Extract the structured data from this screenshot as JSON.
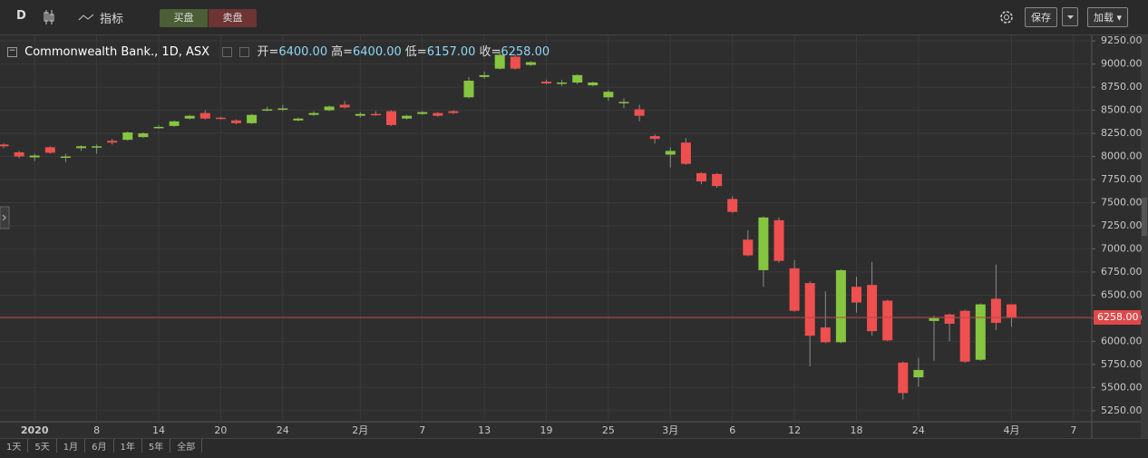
{
  "toolbar": {
    "interval": "D",
    "indicators": "指标",
    "buy": "买盘",
    "sell": "卖盘",
    "save": "保存",
    "load": "加载"
  },
  "legend": {
    "title": "Commonwealth Bank., 1D, ASX",
    "fields": [
      {
        "label": "开=",
        "value": "6400.00"
      },
      {
        "label": "高=",
        "value": "6400.00"
      },
      {
        "label": "低=",
        "value": "6157.00"
      },
      {
        "label": "收=",
        "value": "6258.00"
      }
    ]
  },
  "range_buttons": [
    "1天",
    "5天",
    "1月",
    "6月",
    "1年",
    "5年",
    "全部"
  ],
  "chart_data": {
    "type": "candlestick",
    "categories": [
      null,
      null,
      "2020",
      null,
      null,
      null,
      "8",
      null,
      null,
      null,
      "14",
      null,
      null,
      null,
      "20",
      null,
      null,
      null,
      "24",
      null,
      null,
      null,
      null,
      "2月",
      null,
      null,
      null,
      "7",
      null,
      null,
      null,
      "13",
      null,
      null,
      null,
      "19",
      null,
      null,
      null,
      "25",
      null,
      null,
      null,
      "3月",
      null,
      null,
      null,
      "6",
      null,
      null,
      null,
      "12",
      null,
      null,
      null,
      "18",
      null,
      null,
      null,
      "24",
      null,
      null,
      null,
      null,
      null,
      "4月",
      null,
      null,
      null,
      "7"
    ],
    "open": [
      8130,
      8045,
      7990,
      8100,
      7990,
      8090,
      8100,
      8170,
      8180,
      8210,
      8310,
      8330,
      8410,
      8470,
      8420,
      8390,
      8360,
      8500,
      8510,
      8390,
      8450,
      8500,
      8560,
      8440,
      8460,
      8490,
      8410,
      8460,
      8470,
      8490,
      8640,
      8860,
      8950,
      9080,
      8990,
      8810,
      8790,
      8800,
      8770,
      8640,
      8580,
      8510,
      8220,
      8020,
      8150,
      7820,
      7810,
      7540,
      7100,
      6770,
      7310,
      6790,
      6630,
      6150,
      5990,
      6590,
      6610,
      6440,
      5770,
      5610,
      6220,
      6290,
      6330,
      5800,
      6460,
      6400,
      null,
      null,
      null,
      null
    ],
    "high": [
      8140,
      8060,
      8030,
      8110,
      8030,
      8120,
      8130,
      8190,
      8270,
      8260,
      8340,
      8390,
      8450,
      8500,
      8430,
      8400,
      8460,
      8540,
      8560,
      8420,
      8490,
      8550,
      8600,
      8480,
      8490,
      8500,
      8450,
      8490,
      8480,
      8500,
      8860,
      8920,
      9150,
      9100,
      9030,
      8830,
      8830,
      8890,
      8810,
      8720,
      8630,
      8560,
      8240,
      8100,
      8200,
      7830,
      7820,
      7570,
      7200,
      7350,
      7340,
      6880,
      6650,
      6540,
      6780,
      6700,
      6860,
      6450,
      5780,
      5820,
      6280,
      6300,
      6340,
      6410,
      6830,
      6400,
      null,
      null,
      null,
      null
    ],
    "low": [
      8090,
      7980,
      7950,
      8030,
      7940,
      8060,
      8030,
      8130,
      8170,
      8200,
      8300,
      8320,
      8400,
      8400,
      8400,
      8350,
      8350,
      8490,
      8490,
      8380,
      8440,
      8490,
      8520,
      8420,
      8440,
      8330,
      8400,
      8450,
      8430,
      8460,
      8630,
      8840,
      8940,
      8940,
      8980,
      8780,
      8760,
      8780,
      8760,
      8600,
      8520,
      8380,
      8140,
      7880,
      7910,
      7700,
      7660,
      7390,
      6920,
      6590,
      6850,
      6320,
      5730,
      5980,
      5980,
      6310,
      6060,
      6000,
      5370,
      5510,
      5790,
      6000,
      5770,
      5790,
      6120,
      6157,
      null,
      null,
      null,
      null
    ],
    "close": [
      8110,
      8000,
      8010,
      8040,
      8000,
      8110,
      8110,
      8150,
      8260,
      8250,
      8320,
      8380,
      8440,
      8410,
      8410,
      8360,
      8450,
      8510,
      8520,
      8410,
      8470,
      8540,
      8530,
      8460,
      8450,
      8340,
      8440,
      8480,
      8440,
      8470,
      8820,
      8880,
      9100,
      8950,
      9020,
      8790,
      8800,
      8880,
      8800,
      8700,
      8590,
      8440,
      8190,
      8060,
      7920,
      7730,
      7680,
      7400,
      6930,
      7340,
      6870,
      6330,
      6060,
      5990,
      6770,
      6420,
      6110,
      6010,
      5440,
      5690,
      6250,
      6190,
      5780,
      6400,
      6200,
      6258,
      null,
      null,
      null,
      null
    ],
    "up_color": "#86c53f",
    "down_color": "#ef4f4f",
    "ylim": [
      5130,
      9320
    ],
    "yticks": [
      {
        "value": 5250,
        "label": "5250.00"
      },
      {
        "value": 5500,
        "label": "5500.00"
      },
      {
        "value": 5750,
        "label": "5750.00"
      },
      {
        "value": 6000,
        "label": "6000.00"
      },
      {
        "value": 6250,
        "label": "6250.00"
      },
      {
        "value": 6500,
        "label": "6500.00"
      },
      {
        "value": 6750,
        "label": "6750.00"
      },
      {
        "value": 7000,
        "label": "7000.00"
      },
      {
        "value": 7250,
        "label": "7250.00"
      },
      {
        "value": 7500,
        "label": "7500.00"
      },
      {
        "value": 7750,
        "label": "7750.00"
      },
      {
        "value": 8000,
        "label": "8000.00"
      },
      {
        "value": 8250,
        "label": "8250.00"
      },
      {
        "value": 8500,
        "label": "8500.00"
      },
      {
        "value": 8750,
        "label": "8750.00"
      },
      {
        "value": 9000,
        "label": "9000.00"
      },
      {
        "value": 9250,
        "label": "9250.00"
      }
    ],
    "last_price": {
      "value": 6258,
      "label": "6258.00"
    },
    "grid": true
  }
}
